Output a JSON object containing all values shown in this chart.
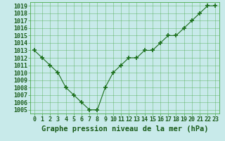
{
  "x": [
    0,
    1,
    2,
    3,
    4,
    5,
    6,
    7,
    8,
    9,
    10,
    11,
    12,
    13,
    14,
    15,
    16,
    17,
    18,
    19,
    20,
    21,
    22,
    23
  ],
  "y": [
    1013,
    1012,
    1011,
    1010,
    1008,
    1007,
    1006,
    1005,
    1005,
    1008,
    1010,
    1011,
    1012,
    1012,
    1013,
    1013,
    1014,
    1015,
    1015,
    1016,
    1017,
    1018,
    1019,
    1019
  ],
  "line_color": "#1a6e1a",
  "marker_color": "#1a6e1a",
  "background_color": "#c8eaea",
  "grid_color": "#4aaa4a",
  "axis_label_color": "#1a5c1a",
  "tick_label_color": "#1a5c1a",
  "xlabel": "Graphe pression niveau de la mer (hPa)",
  "ylim_min": 1004.5,
  "ylim_max": 1019.5,
  "yticks": [
    1005,
    1006,
    1007,
    1008,
    1009,
    1010,
    1011,
    1012,
    1013,
    1014,
    1015,
    1016,
    1017,
    1018,
    1019
  ],
  "xticks": [
    0,
    1,
    2,
    3,
    4,
    5,
    6,
    7,
    8,
    9,
    10,
    11,
    12,
    13,
    14,
    15,
    16,
    17,
    18,
    19,
    20,
    21,
    22,
    23
  ],
  "xlabel_fontsize": 7.5,
  "tick_fontsize": 6.0
}
